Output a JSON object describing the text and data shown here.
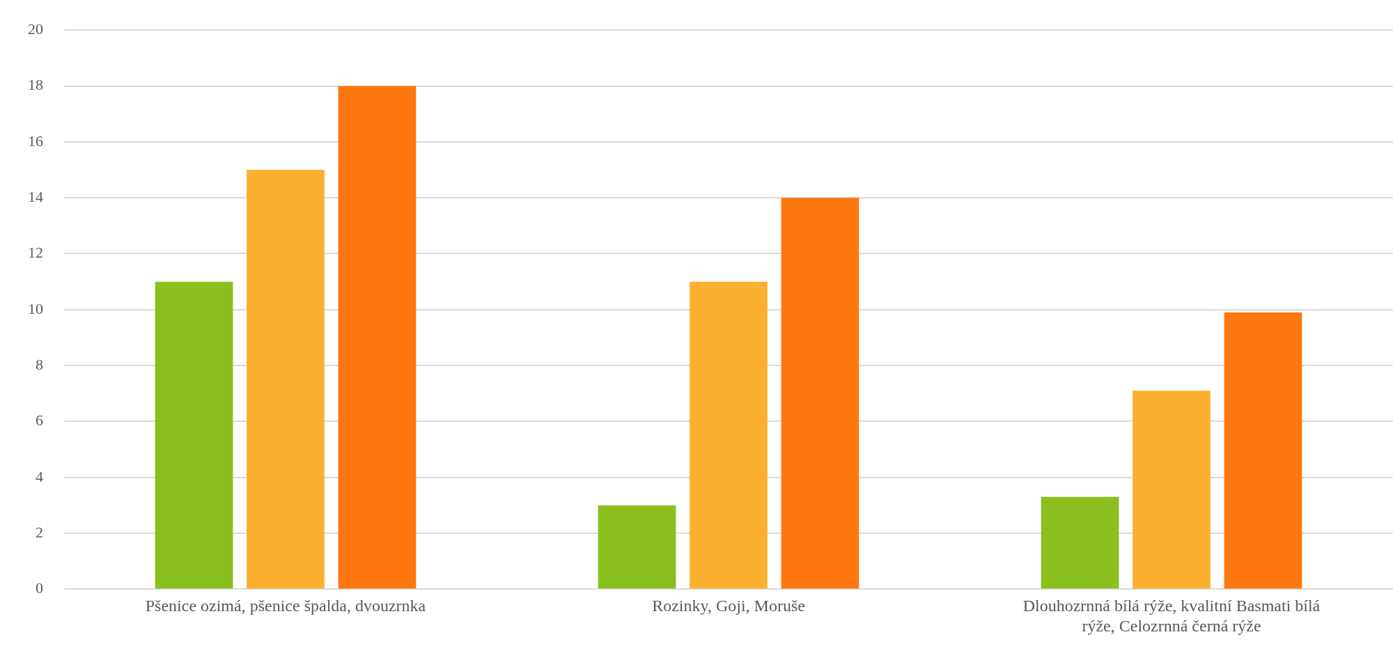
{
  "chart_data": {
    "type": "bar",
    "categories": [
      "Pšenice ozimá, pšenice špalda, dvouzrnka",
      "Rozinky, Goji, Moruše",
      "Dlouhozrnná bílá rýže, kvalitní Basmati bílá rýže, Celozrnná černá rýže"
    ],
    "series": [
      {
        "color": "#8bbf1e",
        "values": [
          11,
          3,
          3.3
        ]
      },
      {
        "color": "#fbb12f",
        "values": [
          15,
          11,
          7.1
        ]
      },
      {
        "color": "#ff7710",
        "values": [
          18,
          14,
          9.9
        ]
      }
    ],
    "ylim": [
      0,
      20
    ],
    "yticks": [
      0,
      2,
      4,
      6,
      8,
      10,
      12,
      14,
      16,
      18,
      20
    ],
    "grid": "y",
    "legend": false
  }
}
